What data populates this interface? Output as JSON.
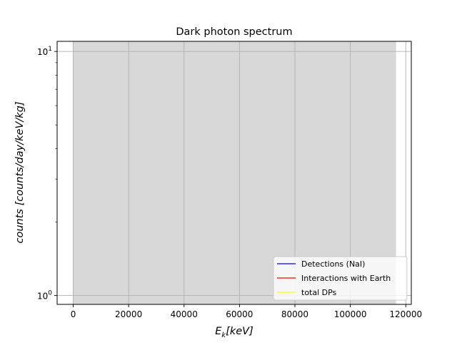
{
  "chart_data": {
    "type": "line",
    "title": "Dark photon spectrum",
    "xlabel": "E_k[keV]",
    "xlabel_main": "E",
    "xlabel_sub": "k",
    "xlabel_rest": "[keV]",
    "ylabel": "counts [counts/day/keV/kg]",
    "xlim": [
      -5800,
      122000
    ],
    "ylim": [
      0.92,
      11.0
    ],
    "yscale": "log",
    "grid": true,
    "x_ticks": [
      0,
      20000,
      40000,
      60000,
      80000,
      100000,
      120000
    ],
    "x_tick_labels": [
      "0",
      "20000",
      "40000",
      "60000",
      "80000",
      "100000",
      "120000"
    ],
    "y_ticks": [
      1,
      10
    ],
    "y_tick_base": "10",
    "y_tick_exps": [
      "0",
      "1"
    ],
    "shaded_region": {
      "x": [
        0,
        116500
      ],
      "color": "#d8d8d8"
    },
    "legend_placement": "lower-right",
    "series": [
      {
        "name": "Detections (NaI)",
        "color": "#0000ff",
        "values": []
      },
      {
        "name": "Interactions with Earth",
        "color": "#ff0000",
        "values": []
      },
      {
        "name": "total DPs",
        "color": "#ffff00",
        "values": []
      }
    ]
  }
}
